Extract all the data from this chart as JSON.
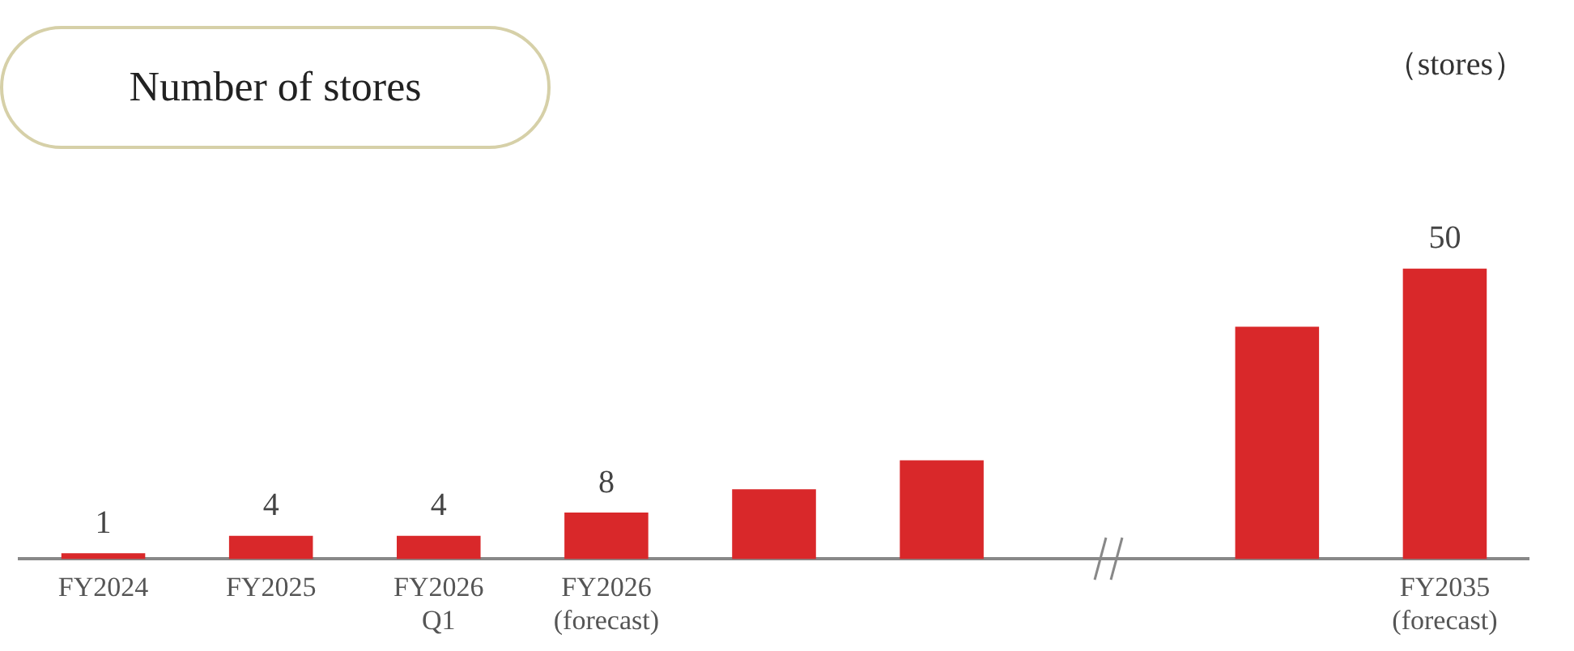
{
  "chart_data": {
    "type": "bar",
    "title": "Number of stores",
    "annotations": [
      "（stores）"
    ],
    "categories": [
      "FY2024",
      "FY2025",
      "FY2026\nQ1",
      "FY2026\n(forecast)",
      null,
      null,
      null,
      null,
      "FY2035\n(forecast)"
    ],
    "values": [
      1,
      4,
      4,
      8,
      12,
      17,
      null,
      40,
      50
    ],
    "value_labels": [
      "1",
      "4",
      "4",
      "8",
      null,
      null,
      null,
      null,
      "50"
    ],
    "color": "#d9282a",
    "grid": false,
    "legend": false,
    "tick_labels": "x"
  }
}
